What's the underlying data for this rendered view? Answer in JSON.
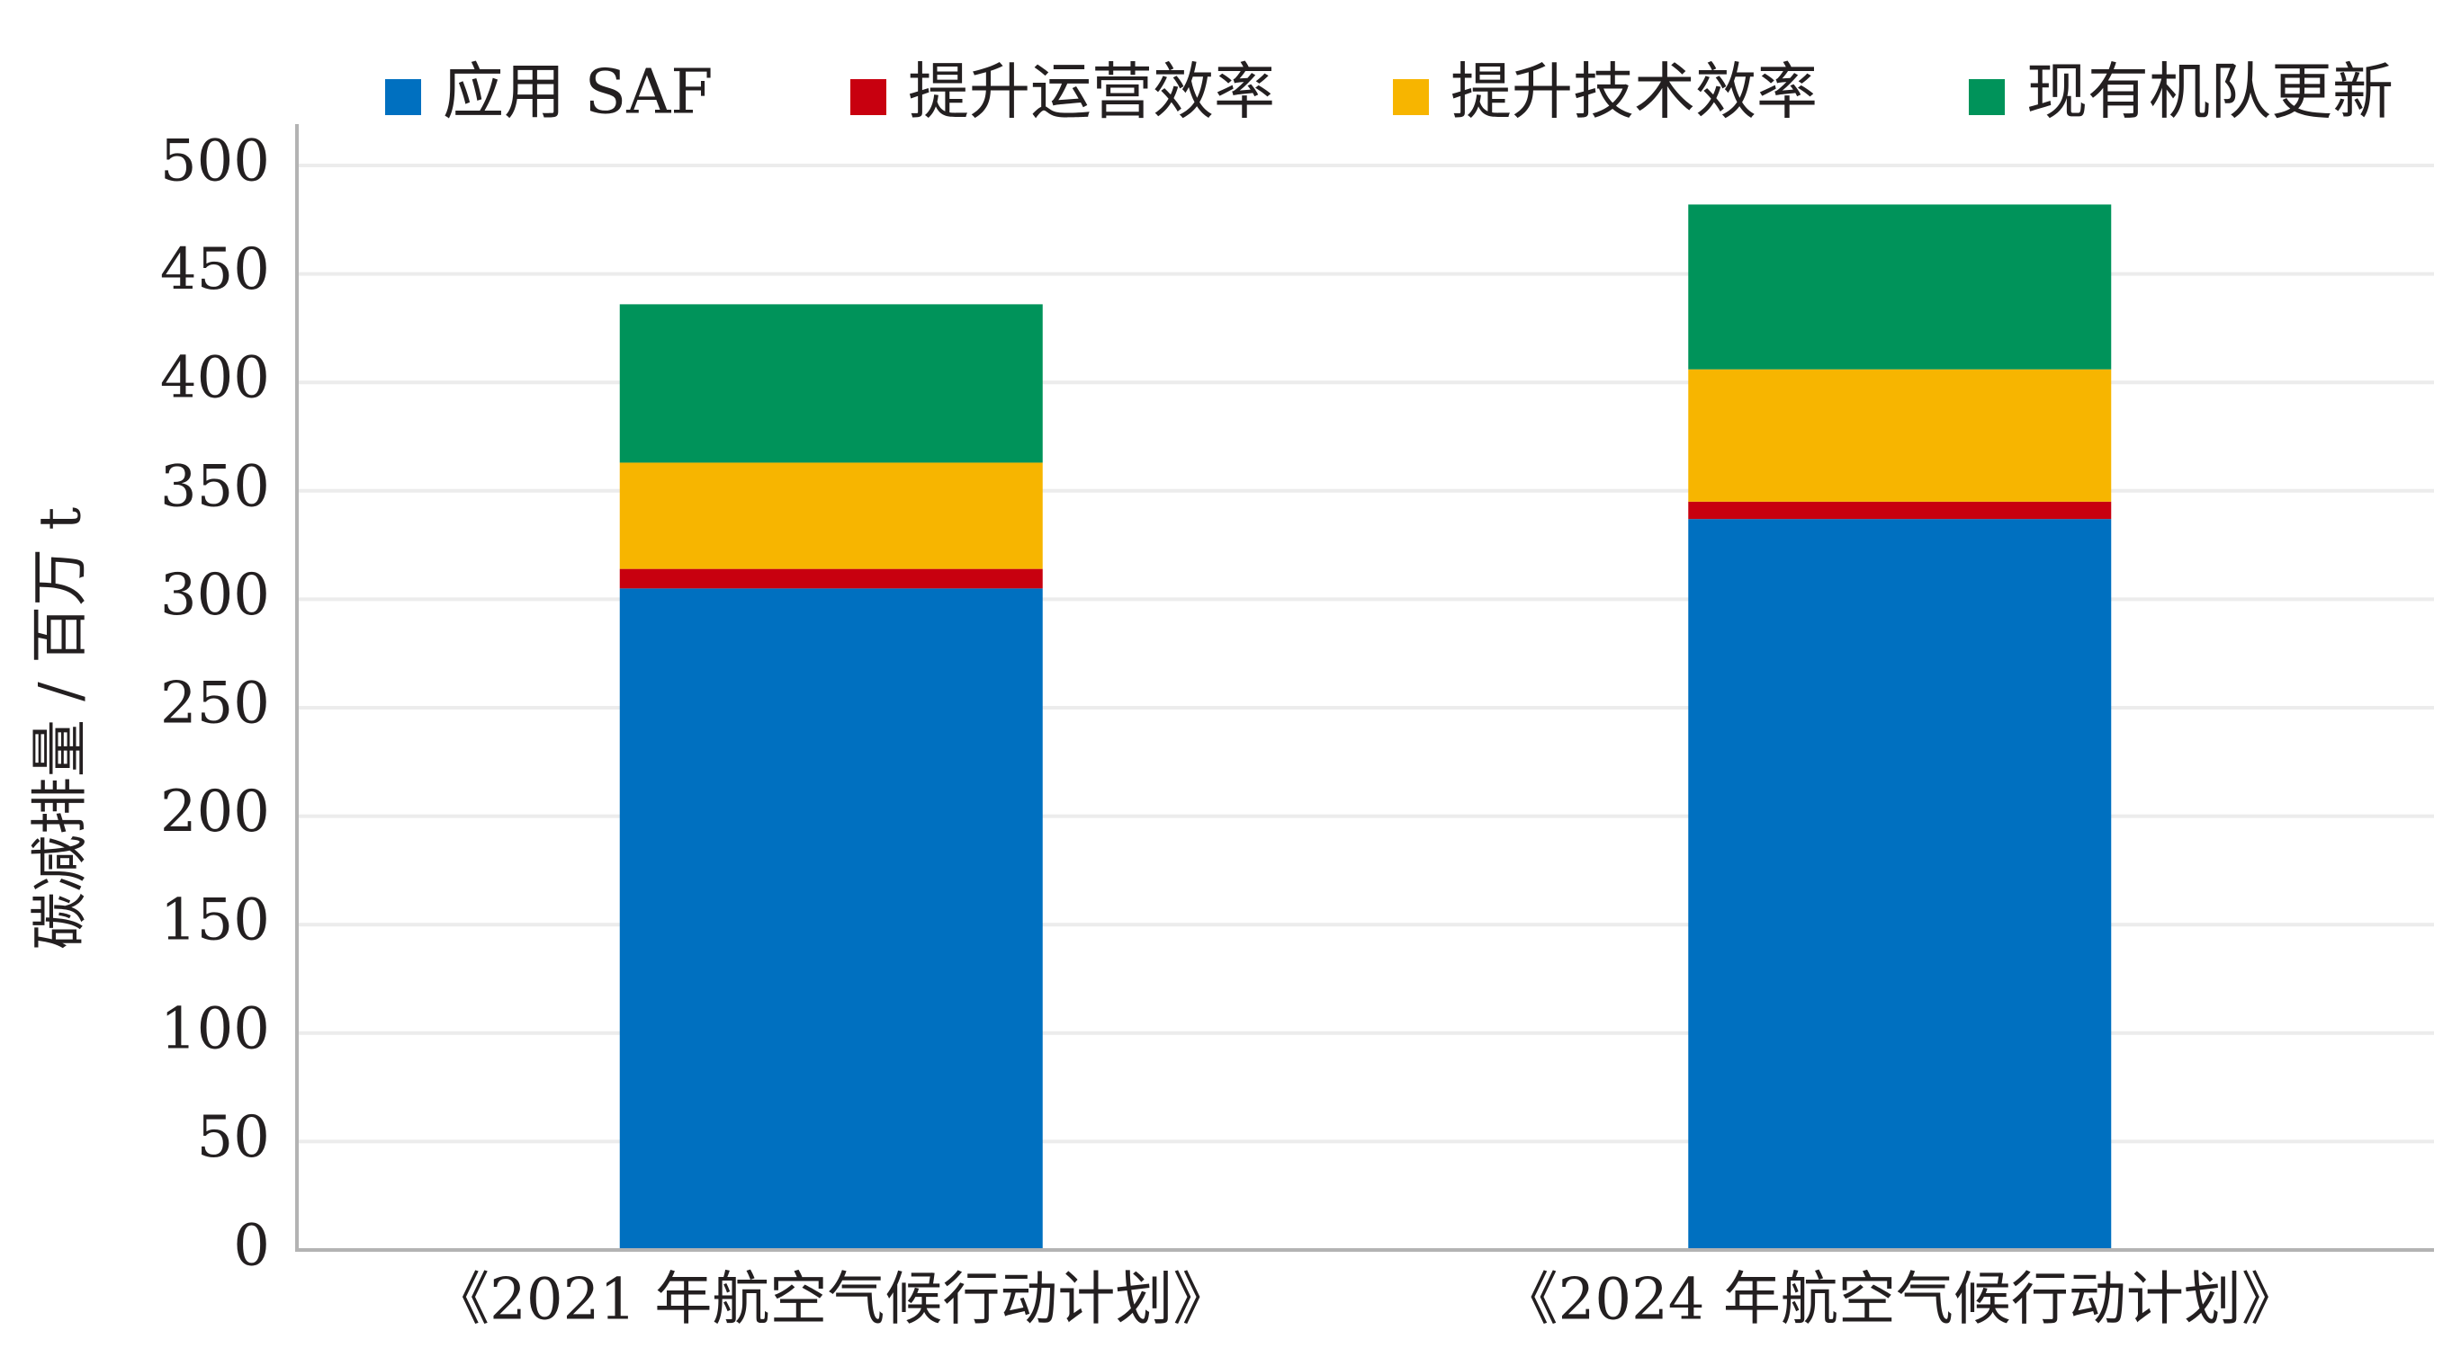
{
  "chart_data": {
    "type": "bar",
    "stacked": true,
    "title": "",
    "xlabel": "",
    "ylabel": "碳减排量 / 百万 t",
    "ylim": [
      0,
      500
    ],
    "yticks": [
      0,
      50,
      100,
      150,
      200,
      250,
      300,
      350,
      400,
      450,
      500
    ],
    "grid": true,
    "legend_position": "top",
    "categories": [
      "《2021 年航空气候行动计划》",
      "《2024 年航空气候行动计划》"
    ],
    "series": [
      {
        "name": "应用 SAF",
        "color": "#0070c0",
        "values": [
          305,
          337
        ]
      },
      {
        "name": "提升运营效率",
        "color": "#c8000f",
        "values": [
          9,
          8
        ]
      },
      {
        "name": "提升技术效率",
        "color": "#f7b500",
        "values": [
          49,
          61
        ]
      },
      {
        "name": "现有机队更新",
        "color": "#00935a",
        "values": [
          73,
          76
        ]
      }
    ]
  }
}
